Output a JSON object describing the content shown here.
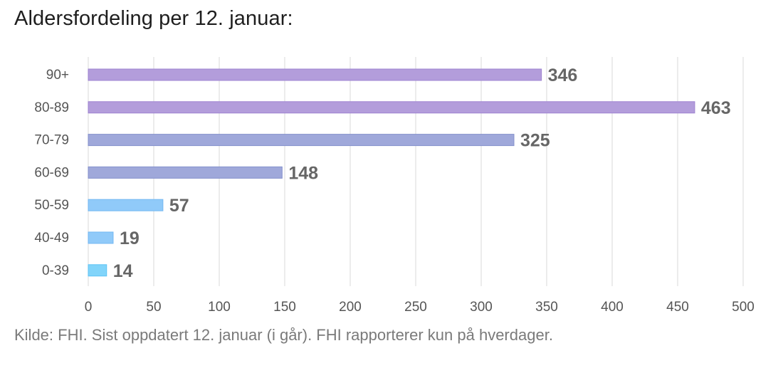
{
  "title": "Aldersfordeling per 12. januar:",
  "source": "Kilde: FHI. Sist oppdatert 12. januar (i går). FHI rapporterer kun på hverdager.",
  "colors": {
    "purple": "#b39ddb",
    "purple_stroke": "#9e83d1",
    "indigo": "#9fa8da",
    "indigo_stroke": "#8591cc",
    "lightblue": "#90caf9",
    "lightblue_stroke": "#74b8f2",
    "skyblue": "#81d4fa",
    "skyblue_stroke": "#5ec4f5",
    "grid": "#e0e0e0",
    "tick_text": "#555555",
    "value_label": "#666666"
  },
  "chart_data": {
    "type": "bar",
    "orientation": "horizontal",
    "title": "Aldersfordeling per 12. januar:",
    "categories": [
      "90+",
      "80-89",
      "70-79",
      "60-69",
      "50-59",
      "40-49",
      "0-39"
    ],
    "values": [
      346,
      463,
      325,
      148,
      57,
      19,
      14
    ],
    "value_labels": [
      "346",
      "463",
      "325",
      "148",
      "57",
      "19",
      "14"
    ],
    "bar_colors": [
      "purple",
      "purple",
      "indigo",
      "indigo",
      "lightblue",
      "lightblue",
      "skyblue"
    ],
    "xlim": [
      0,
      500
    ],
    "x_ticks": [
      0,
      50,
      100,
      150,
      200,
      250,
      300,
      350,
      400,
      450,
      500
    ],
    "x_tick_labels": [
      "0",
      "50",
      "100",
      "150",
      "200",
      "250",
      "300",
      "350",
      "400",
      "450",
      "500"
    ],
    "xlabel": "",
    "ylabel": "",
    "grid": true,
    "legend": false
  }
}
